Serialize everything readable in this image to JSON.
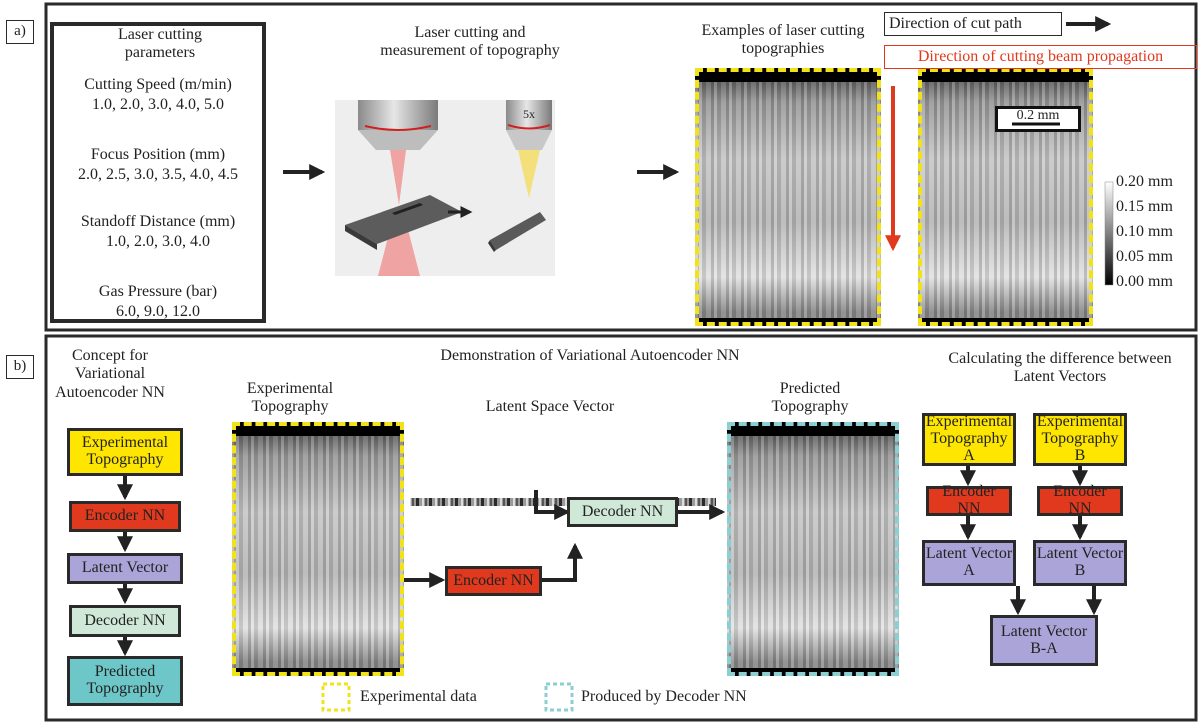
{
  "panel_a": {
    "label": "a)",
    "parameters": {
      "title": "Laser cutting parameters",
      "items": [
        {
          "name": "Cutting Speed (m/min)",
          "values": "1.0, 2.0, 3.0, 4.0, 5.0"
        },
        {
          "name": "Focus Position (mm)",
          "values": "2.0, 2.5, 3.0, 3.5, 4.0, 4.5"
        },
        {
          "name": "Standoff Distance (mm)",
          "values": "1.0, 2.0, 3.0, 4.0"
        },
        {
          "name": "Gas Pressure (bar)",
          "values": "6.0, 9.0, 12.0"
        }
      ]
    },
    "measurement": {
      "title": "Laser cutting and measurement of topography",
      "lens_label": "5x"
    },
    "examples": {
      "title": "Examples of laser cutting topographies",
      "scale_bar": "0.2 mm"
    },
    "cut_path": "Direction of cut path",
    "beam": "Direction of cutting beam propagation",
    "colorbar": [
      "0.20 mm",
      "0.15 mm",
      "0.10 mm",
      "0.05 mm",
      "0.00 mm"
    ]
  },
  "panel_b": {
    "label": "b)",
    "concept": {
      "title": "Concept for Variational Autoencoder NN",
      "steps": [
        "Experimental Topography",
        "Encoder NN",
        "Latent Vector",
        "Decoder NN",
        "Predicted Topography"
      ]
    },
    "demo": {
      "title": "Demonstration of Variational Autoencoder NN",
      "experimental": "Experimental Topography",
      "latent": "Latent Space Vector",
      "predicted": "Predicted Topography",
      "encoder": "Encoder NN",
      "decoder": "Decoder NN"
    },
    "difference": {
      "title": "Calculating the difference between Latent Vectors",
      "input_a": "Experimental Topography A",
      "input_b": "Experimental Topography B",
      "encoder_a": "Encoder NN",
      "encoder_b": "Encoder NN",
      "latent_a": "Latent Vector A",
      "latent_b": "Latent Vector B",
      "result": "Latent Vector B-A"
    },
    "legend": [
      "Experimental data",
      "Produced by Decoder NN"
    ]
  }
}
